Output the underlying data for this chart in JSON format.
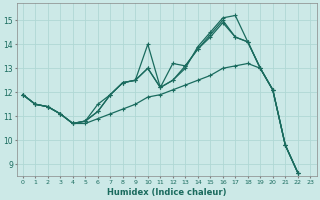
{
  "xlabel": "Humidex (Indice chaleur)",
  "xlim": [
    -0.5,
    23.5
  ],
  "ylim": [
    8.5,
    15.7
  ],
  "yticks": [
    9,
    10,
    11,
    12,
    13,
    14,
    15
  ],
  "xticks": [
    0,
    1,
    2,
    3,
    4,
    5,
    6,
    7,
    8,
    9,
    10,
    11,
    12,
    13,
    14,
    15,
    16,
    17,
    18,
    19,
    20,
    21,
    22,
    23
  ],
  "bg_color": "#cce9e7",
  "line_color": "#1a6b5e",
  "grid_color": "#b0d8d4",
  "line1_x": [
    0,
    1,
    2,
    3,
    4,
    5,
    6,
    7,
    8,
    9,
    10,
    11,
    12,
    13,
    14,
    15,
    16,
    17,
    18,
    19,
    20,
    21,
    22,
    23
  ],
  "line1_y": [
    11.9,
    11.5,
    11.4,
    11.1,
    10.7,
    10.7,
    10.9,
    11.1,
    11.3,
    11.5,
    11.8,
    11.9,
    12.1,
    12.3,
    12.5,
    12.7,
    13.0,
    13.1,
    13.2,
    13.0,
    12.1,
    9.8,
    8.65,
    null
  ],
  "line2_x": [
    0,
    1,
    2,
    3,
    4,
    5,
    6,
    7,
    8,
    9,
    10,
    11,
    12,
    13,
    14,
    15,
    16,
    17,
    18,
    19,
    20,
    21,
    22,
    23
  ],
  "line2_y": [
    11.9,
    11.5,
    11.4,
    11.1,
    10.7,
    10.8,
    11.5,
    11.9,
    12.4,
    12.5,
    14.0,
    12.2,
    12.5,
    13.0,
    13.9,
    14.5,
    15.1,
    15.2,
    14.1,
    13.0,
    12.1,
    9.8,
    8.65,
    null
  ],
  "line3_x": [
    0,
    1,
    2,
    3,
    4,
    5,
    6,
    7,
    8,
    9,
    10,
    11,
    12,
    13,
    14,
    15,
    16,
    17,
    18,
    19,
    20,
    21,
    22,
    23
  ],
  "line3_y": [
    11.9,
    11.5,
    11.4,
    11.1,
    10.7,
    10.8,
    11.2,
    11.9,
    12.4,
    12.5,
    13.0,
    12.2,
    13.2,
    13.1,
    13.8,
    14.3,
    14.9,
    14.3,
    14.1,
    13.0,
    12.1,
    9.8,
    8.65,
    null
  ],
  "line4_x": [
    0,
    1,
    2,
    3,
    4,
    5,
    6,
    7,
    8,
    9,
    10,
    11,
    12,
    13,
    14,
    15,
    16,
    17,
    18,
    19,
    20,
    21,
    22,
    23
  ],
  "line4_y": [
    11.9,
    11.5,
    11.4,
    11.1,
    10.7,
    10.8,
    11.2,
    11.9,
    12.4,
    12.5,
    13.0,
    12.2,
    12.5,
    13.1,
    13.8,
    14.4,
    15.0,
    14.3,
    14.1,
    13.0,
    12.1,
    9.8,
    8.65,
    null
  ]
}
